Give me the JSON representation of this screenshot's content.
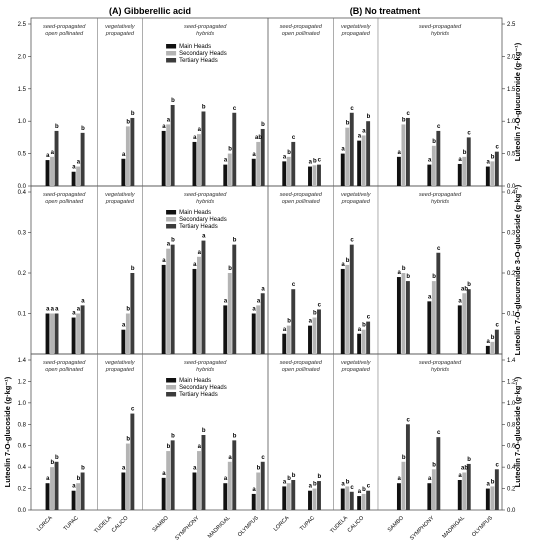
{
  "chart_data": {
    "type": "bar",
    "panel_titles": [
      "(A) Gibberellic acid",
      "(B) No treatment"
    ],
    "ylabels": [
      "Luteolin 7-O-glucuronide (g·kg⁻¹)",
      "Luteolin 7-O-glucuronide 3-O-glucoside (g·kg⁻¹)",
      "Luteolin 7-O-glucoside (g·kg⁻¹)"
    ],
    "categories": [
      "LORCA",
      "TUPAC",
      "TUDELA",
      "CALICO",
      "SAMBO",
      "SYMPHONY",
      "MADRIGAL",
      "OLYMPUS"
    ],
    "groups": [
      "seed-propagated\nopen pollinated",
      "vegetatively\npropagated",
      "seed-propagated\nhybrids"
    ],
    "legend": [
      "Main Heads",
      "Secondary Heads",
      "Tertiary Heads"
    ],
    "series_colors": [
      "#111111",
      "#b4b4b4",
      "#3c3c3c"
    ],
    "rows": [
      {
        "ylim": [
          0,
          2.5
        ],
        "yticks": [
          "0.0",
          "0.5",
          "1.0",
          "1.5",
          "2.0",
          "2.5"
        ],
        "panels": [
          {
            "values": [
              [
                0.4,
                0.45,
                0.85
              ],
              [
                0.22,
                0.3,
                0.82
              ],
              [
                null,
                null,
                null
              ],
              [
                0.42,
                0.92,
                1.05
              ],
              [
                0.85,
                0.95,
                1.25
              ],
              [
                0.68,
                0.8,
                1.15
              ],
              [
                0.33,
                0.5,
                1.13
              ],
              [
                0.42,
                0.68,
                0.88
              ]
            ],
            "letters": [
              [
                "a",
                "a",
                "b"
              ],
              [
                "a",
                "a",
                "b"
              ],
              [
                "",
                "",
                ""
              ],
              [
                "a",
                "b",
                "b"
              ],
              [
                "a",
                "a",
                "b"
              ],
              [
                "a",
                "a",
                "b"
              ],
              [
                "a",
                "b",
                "c"
              ],
              [
                "a",
                "ab",
                "b"
              ]
            ]
          },
          {
            "values": [
              [
                0.38,
                0.45,
                0.68
              ],
              [
                0.3,
                0.32,
                0.33
              ],
              [
                0.5,
                0.9,
                1.13
              ],
              [
                0.7,
                0.78,
                1.0
              ],
              [
                0.45,
                0.95,
                1.05
              ],
              [
                0.33,
                0.62,
                0.85
              ],
              [
                0.34,
                0.45,
                0.75
              ],
              [
                0.3,
                0.38,
                0.53
              ]
            ],
            "letters": [
              [
                "a",
                "b",
                "c"
              ],
              [
                "a",
                "b",
                "c"
              ],
              [
                "a",
                "b",
                "c"
              ],
              [
                "a",
                "a",
                "b"
              ],
              [
                "a",
                "b",
                "c"
              ],
              [
                "a",
                "b",
                "c"
              ],
              [
                "a",
                "b",
                "c"
              ],
              [
                "a",
                "b",
                "c"
              ]
            ]
          }
        ]
      },
      {
        "ylim": [
          0,
          0.4
        ],
        "yticks": [
          "0.1",
          "0.2",
          "0.3",
          "0.4"
        ],
        "panels": [
          {
            "values": [
              [
                0.1,
                0.1,
                0.1
              ],
              [
                0.09,
                0.1,
                0.12
              ],
              [
                null,
                null,
                null
              ],
              [
                0.06,
                0.1,
                0.2
              ],
              [
                0.22,
                0.26,
                0.27
              ],
              [
                0.21,
                0.24,
                0.28
              ],
              [
                0.12,
                0.2,
                0.27
              ],
              [
                0.1,
                0.12,
                0.15
              ]
            ],
            "letters": [
              [
                "a",
                "a",
                "a"
              ],
              [
                "a",
                "a",
                "a"
              ],
              [
                "",
                "",
                ""
              ],
              [
                "a",
                "b",
                "b"
              ],
              [
                "a",
                "a",
                "b"
              ],
              [
                "a",
                "a",
                "a"
              ],
              [
                "a",
                "b",
                "b"
              ],
              [
                "a",
                "a",
                "a"
              ]
            ]
          },
          {
            "values": [
              [
                0.05,
                0.07,
                0.16
              ],
              [
                0.07,
                0.09,
                0.11
              ],
              [
                0.21,
                0.22,
                0.27
              ],
              [
                0.05,
                0.06,
                0.08
              ],
              [
                0.19,
                0.2,
                0.18
              ],
              [
                0.13,
                0.18,
                0.25
              ],
              [
                0.12,
                0.15,
                0.16
              ],
              [
                0.02,
                0.03,
                0.06
              ]
            ],
            "letters": [
              [
                "a",
                "b",
                "c"
              ],
              [
                "a",
                "b",
                "c"
              ],
              [
                "a",
                "b",
                "c"
              ],
              [
                "a",
                "b",
                "c"
              ],
              [
                "a",
                "b",
                "b"
              ],
              [
                "a",
                "b",
                "c"
              ],
              [
                "a",
                "ab",
                "b"
              ],
              [
                "a",
                "b",
                "c"
              ]
            ]
          }
        ]
      },
      {
        "ylim": [
          0,
          1.4
        ],
        "yticks": [
          "0.0",
          "0.2",
          "0.4",
          "0.6",
          "0.8",
          "1.0",
          "1.2",
          "1.4"
        ],
        "panels": [
          {
            "values": [
              [
                0.25,
                0.4,
                0.45
              ],
              [
                0.18,
                0.25,
                0.35
              ],
              [
                null,
                null,
                null
              ],
              [
                0.35,
                0.62,
                0.9
              ],
              [
                0.3,
                0.55,
                0.65
              ],
              [
                0.35,
                0.55,
                0.7
              ],
              [
                0.25,
                0.45,
                0.65
              ],
              [
                0.15,
                0.35,
                0.45
              ]
            ],
            "letters": [
              [
                "a",
                "b",
                "b"
              ],
              [
                "a",
                "b",
                "b"
              ],
              [
                "",
                "",
                ""
              ],
              [
                "a",
                "b",
                "c"
              ],
              [
                "a",
                "b",
                "b"
              ],
              [
                "a",
                "a",
                "b"
              ],
              [
                "a",
                "a",
                "b"
              ],
              [
                "a",
                "b",
                "c"
              ]
            ]
          },
          {
            "values": [
              [
                0.22,
                0.25,
                0.28
              ],
              [
                0.18,
                0.2,
                0.27
              ],
              [
                0.2,
                0.22,
                0.17
              ],
              [
                0.13,
                0.15,
                0.18
              ],
              [
                0.25,
                0.45,
                0.8
              ],
              [
                0.25,
                0.38,
                0.68
              ],
              [
                0.28,
                0.35,
                0.43
              ],
              [
                0.2,
                0.22,
                0.38
              ]
            ],
            "letters": [
              [
                "a",
                "b",
                "b"
              ],
              [
                "a",
                "b",
                "b"
              ],
              [
                "a",
                "b",
                "c"
              ],
              [
                "a",
                "b",
                "c"
              ],
              [
                "a",
                "b",
                "c"
              ],
              [
                "a",
                "b",
                "c"
              ],
              [
                "a",
                "ab",
                "b"
              ],
              [
                "a",
                "b",
                "c"
              ]
            ]
          }
        ]
      }
    ]
  }
}
